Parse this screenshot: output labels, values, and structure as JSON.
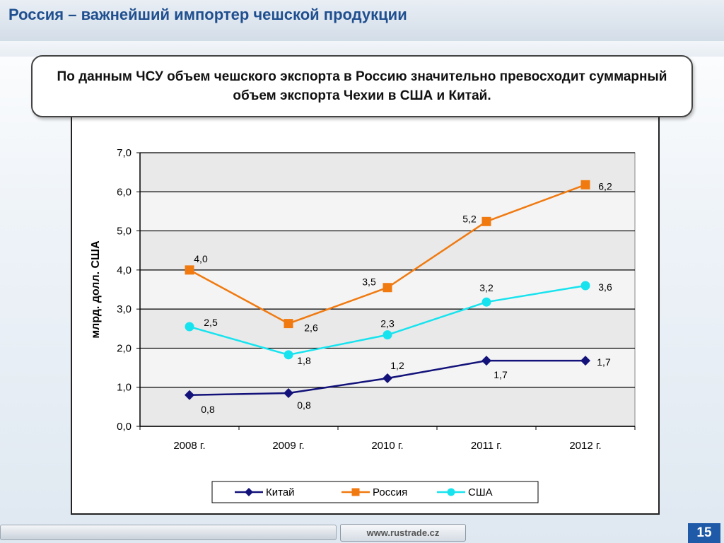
{
  "slide": {
    "title": "Россия – важнейший импортер чешской продукции",
    "callout": "По данным ЧСУ объем чешского экспорта в Россию значительно превосходит суммарный объем экспорта Чехии в США и Китай.",
    "footer_url": "www.rustrade.cz",
    "page_number": "15"
  },
  "chart_data": {
    "type": "line",
    "categories": [
      "2008 г.",
      "2009 г.",
      "2010 г.",
      "2011 г.",
      "2012 г."
    ],
    "ylabel": "млрд. долл. США",
    "ylim": [
      0,
      7
    ],
    "yticks": [
      "0,0",
      "1,0",
      "2,0",
      "3,0",
      "4,0",
      "5,0",
      "6,0",
      "7,0"
    ],
    "grid": true,
    "legend_position": "bottom",
    "series": [
      {
        "name": "Китай",
        "values": [
          0.8,
          0.85,
          1.23,
          1.68,
          1.68
        ],
        "labels": [
          "0,8",
          "0,8",
          "1,2",
          "1,7",
          "1,7"
        ],
        "color": "#12127a",
        "marker": "diamond"
      },
      {
        "name": "Россия",
        "values": [
          4.0,
          2.63,
          3.55,
          5.24,
          6.18
        ],
        "labels": [
          "4,0",
          "2,6",
          "3,5",
          "5,2",
          "6,2"
        ],
        "color": "#f07a10",
        "marker": "square"
      },
      {
        "name": "США",
        "values": [
          2.55,
          1.83,
          2.34,
          3.18,
          3.6
        ],
        "labels": [
          "2,5",
          "1,8",
          "2,3",
          "3,2",
          "3,6"
        ],
        "color": "#17e3ef",
        "marker": "circle"
      }
    ]
  }
}
